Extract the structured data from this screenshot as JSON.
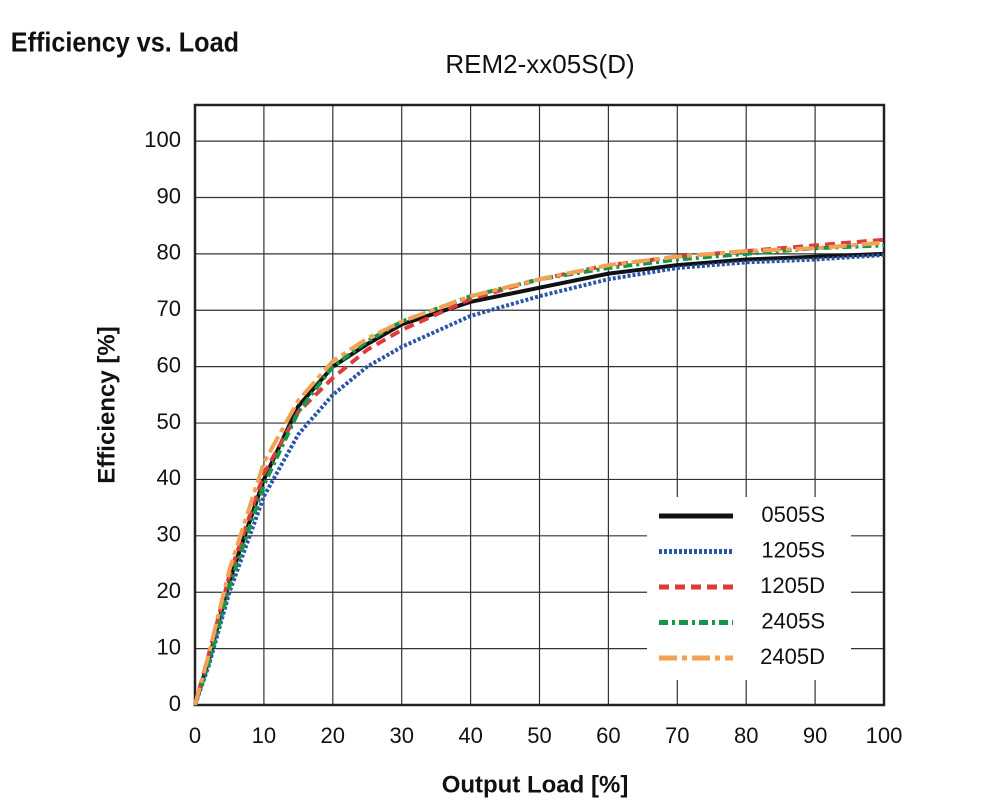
{
  "heading": "Efficiency vs. Load",
  "chart_data": {
    "type": "line",
    "title": "REM2-xx05S(D)",
    "x_label": "Output Load [%]",
    "y_label": "Efficiency [%]",
    "x": [
      0,
      2,
      5,
      10,
      15,
      20,
      25,
      30,
      40,
      50,
      60,
      70,
      80,
      90,
      100
    ],
    "series": [
      {
        "name": "0505S",
        "color": "#111111",
        "dash": "none",
        "values": [
          0,
          8,
          22,
          40,
          53,
          60,
          64,
          67.5,
          71.5,
          74,
          76.5,
          78,
          79,
          79.5,
          80
        ]
      },
      {
        "name": "1205S",
        "color": "#2a56a8",
        "dash": "3 2",
        "values": [
          0,
          7,
          20,
          37,
          48,
          55,
          60,
          63.5,
          69,
          72.5,
          75.5,
          77.5,
          78.5,
          79,
          79.8
        ]
      },
      {
        "name": "1205D",
        "color": "#e03a3a",
        "dash": "10 6",
        "values": [
          0,
          9,
          23,
          41,
          52,
          58,
          63,
          66.5,
          72,
          75.5,
          78,
          79.5,
          80.5,
          81.5,
          82.5
        ]
      },
      {
        "name": "2405S",
        "color": "#17964a",
        "dash": "9 4 3 4",
        "values": [
          0,
          7.5,
          21,
          39,
          52,
          60,
          64.5,
          68,
          72.5,
          75.5,
          77.5,
          79,
          80,
          81,
          81.5
        ]
      },
      {
        "name": "2405D",
        "color": "#f2a254",
        "dash": "18 5 5 5",
        "values": [
          0,
          9,
          24,
          43,
          54,
          61,
          65,
          68,
          72.5,
          75.5,
          78,
          79.5,
          80.5,
          81,
          82
        ]
      }
    ],
    "xlim": [
      0,
      100
    ],
    "ylim": [
      0,
      106.4
    ],
    "xticks": [
      0,
      10,
      20,
      30,
      40,
      50,
      60,
      70,
      80,
      90,
      100
    ],
    "yticks": [
      0,
      10,
      20,
      30,
      40,
      50,
      60,
      70,
      80,
      90,
      100
    ],
    "grid": true,
    "legend": "lower-right"
  }
}
